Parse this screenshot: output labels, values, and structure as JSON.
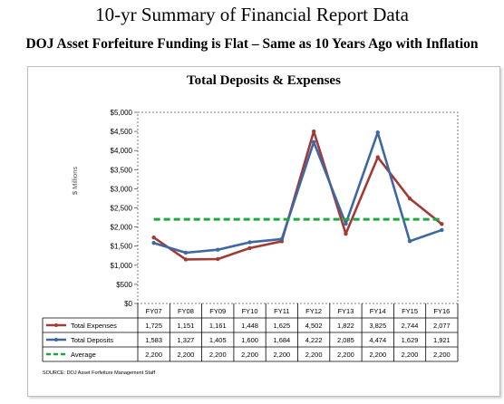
{
  "page": {
    "title": "10-yr Summary of Financial Report Data",
    "subtitle": "DOJ Asset Forfeiture Funding is Flat – Same as 10 Years Ago with Inflation",
    "source": "SOURCE: DOJ Asset Forfeiture Management Staff"
  },
  "colors": {
    "expenses": "#a23b35",
    "deposits": "#3e67a3",
    "average": "#1fa640"
  },
  "chart_data": {
    "type": "line",
    "title": "Total Deposits & Expenses",
    "ylabel": "$ Millions",
    "ylim": [
      0,
      5000
    ],
    "yticks": [
      "$0",
      "$500",
      "$1,000",
      "$1,500",
      "$2,000",
      "$2,500",
      "$3,000",
      "$3,500",
      "$4,000",
      "$4,500",
      "$5,000"
    ],
    "ytick_values": [
      0,
      500,
      1000,
      1500,
      2000,
      2500,
      3000,
      3500,
      4000,
      4500,
      5000
    ],
    "categories": [
      "FY07",
      "FY08",
      "FY09",
      "FY10",
      "FY11",
      "FY12",
      "FY13",
      "FY14",
      "FY15",
      "FY16"
    ],
    "series": [
      {
        "name": "Total Expenses",
        "values": [
          1725,
          1151,
          1161,
          1448,
          1625,
          4502,
          1822,
          3825,
          2744,
          2077
        ],
        "labels": [
          "1,725",
          "1,151",
          "1,161",
          "1,448",
          "1,625",
          "4,502",
          "1,822",
          "3,825",
          "2,744",
          "2,077"
        ]
      },
      {
        "name": "Total Deposits",
        "values": [
          1583,
          1327,
          1405,
          1600,
          1684,
          4222,
          2085,
          4474,
          1629,
          1921
        ],
        "labels": [
          "1,583",
          "1,327",
          "1,405",
          "1,600",
          "1,684",
          "4,222",
          "2,085",
          "4,474",
          "1,629",
          "1,921"
        ]
      },
      {
        "name": "Average",
        "values": [
          2200,
          2200,
          2200,
          2200,
          2200,
          2200,
          2200,
          2200,
          2200,
          2200
        ],
        "labels": [
          "2,200",
          "2,200",
          "2,200",
          "2,200",
          "2,200",
          "2,200",
          "2,200",
          "2,200",
          "2,200",
          "2,200"
        ]
      }
    ],
    "legend": "data-table"
  }
}
